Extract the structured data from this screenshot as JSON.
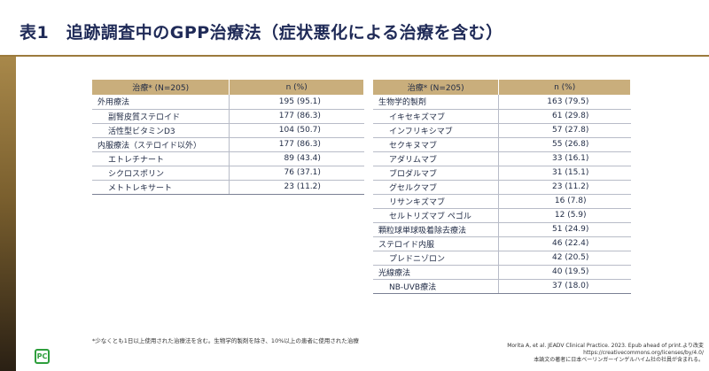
{
  "title": "表1　追跡調査中のGPP治療法（症状悪化による治療を含む）",
  "header": {
    "col1": "治療* (N=205)",
    "col2": "n (%)"
  },
  "left_table": [
    {
      "name": "外用療法",
      "n": "195",
      "pct": "(95.1)",
      "sub": false
    },
    {
      "name": "副腎皮質ステロイド",
      "n": "177",
      "pct": "(86.3)",
      "sub": true
    },
    {
      "name": "活性型ビタミンD3",
      "n": "104",
      "pct": "(50.7)",
      "sub": true
    },
    {
      "name": "内服療法（ステロイド以外）",
      "n": "177",
      "pct": "(86.3)",
      "sub": false
    },
    {
      "name": "エトレチナート",
      "n": "89",
      "pct": "(43.4)",
      "sub": true
    },
    {
      "name": "シクロスポリン",
      "n": "76",
      "pct": "(37.1)",
      "sub": true
    },
    {
      "name": "メトトレキサート",
      "n": "23",
      "pct": "(11.2)",
      "sub": true
    }
  ],
  "right_table": [
    {
      "name": "生物学的製剤",
      "n": "163",
      "pct": "(79.5)",
      "sub": false
    },
    {
      "name": "イキセキズマブ",
      "n": "61",
      "pct": "(29.8)",
      "sub": true
    },
    {
      "name": "インフリキシマブ",
      "n": "57",
      "pct": "(27.8)",
      "sub": true
    },
    {
      "name": "セクキヌマブ",
      "n": "55",
      "pct": "(26.8)",
      "sub": true
    },
    {
      "name": "アダリムマブ",
      "n": "33",
      "pct": "(16.1)",
      "sub": true
    },
    {
      "name": "ブロダルマブ",
      "n": "31",
      "pct": "(15.1)",
      "sub": true
    },
    {
      "name": "グセルクマブ",
      "n": "23",
      "pct": "(11.2)",
      "sub": true
    },
    {
      "name": "リサンキズマブ",
      "n": "16",
      "pct": "(7.8)",
      "sub": true
    },
    {
      "name": "セルトリズマブ ペゴル",
      "n": "12",
      "pct": "(5.9)",
      "sub": true
    },
    {
      "name": "顆粒球単球吸着除去療法",
      "n": "51",
      "pct": "(24.9)",
      "sub": false
    },
    {
      "name": "ステロイド内服",
      "n": "46",
      "pct": "(22.4)",
      "sub": false
    },
    {
      "name": "プレドニゾロン",
      "n": "42",
      "pct": "(20.5)",
      "sub": true
    },
    {
      "name": "光線療法",
      "n": "40",
      "pct": "(19.5)",
      "sub": false
    },
    {
      "name": "NB-UVB療法",
      "n": "37",
      "pct": "(18.0)",
      "sub": true
    }
  ],
  "footnote": "*少なくとも1日以上使用された治療法を含む。生物学的製剤を除き、10%以上の患者に使用された治療",
  "source": {
    "line1": "Morita A, et al. JEADV Clinical Practice. 2023. Epub ahead of print.より改変",
    "line2": "https://creativecommons.org/licenses/by/4.0/",
    "line3": "本論文の著者に日本ベーリンガーインゲルハイム社の社員が含まれる。"
  },
  "logo_text": "PC"
}
